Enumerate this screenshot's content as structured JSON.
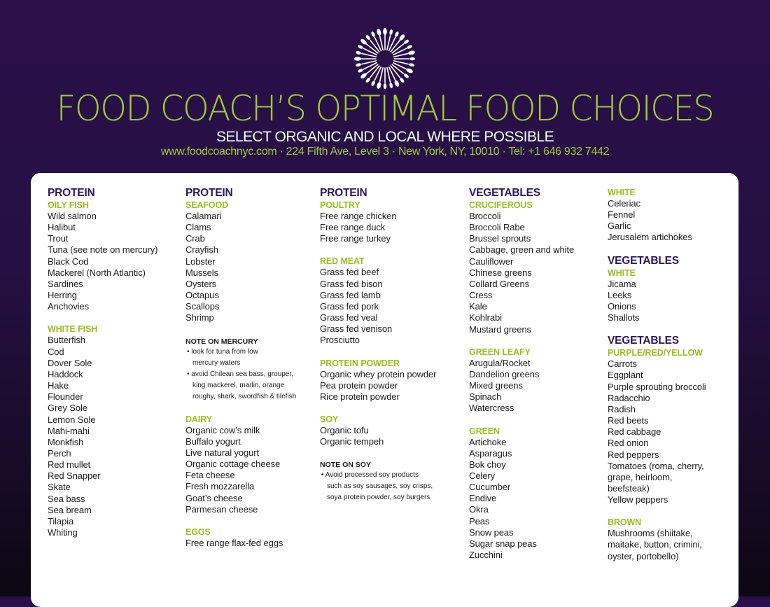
{
  "header": {
    "title": "FOOD COACH’S OPTIMAL FOOD CHOICES",
    "subtitle": "SELECT ORGANIC AND LOCAL WHERE POSSIBLE",
    "contact": "www.foodcoachnyc.com · 224 Fifth Ave, Level 3 · New York, NY, 10010 · Tel: +1 646 932 7442",
    "logo_icon": "utensil-burst-icon"
  },
  "colors": {
    "purple": "#2c1758",
    "green": "#a2c83a",
    "text": "#1d1d1d"
  },
  "columns": [
    {
      "heading": "PROTEIN",
      "sections": [
        {
          "category": "OILY FISH",
          "items": [
            "Wild salmon",
            "Halibut",
            "Trout",
            "Tuna (see note on mercury)",
            "Black Cod",
            "Mackerel (North Atlantic)",
            "Sardines",
            "Herring",
            "Anchovies"
          ]
        },
        {
          "category": "WHITE FISH",
          "items": [
            "Butterfish",
            "Cod",
            "Dover Sole",
            "Haddock",
            "Hake",
            "Flounder",
            "Grey Sole",
            "Lemon Sole",
            "Mahi-mahi",
            "Monkfish",
            "Perch",
            "Red mullet",
            "Red Snapper",
            "Skate",
            "Sea bass",
            "Sea bream",
            "Tilapia",
            "Whiting"
          ]
        }
      ]
    },
    {
      "heading": "PROTEIN",
      "sections": [
        {
          "category": "SEAFOOD",
          "items": [
            "Calamari",
            "Clams",
            "Crab",
            "Crayfish",
            "Lobster",
            "Mussels",
            "Oysters",
            "Octapus",
            "Scallops",
            "Shrimp"
          ]
        }
      ],
      "note": {
        "title": "NOTE ON MERCURY",
        "lines": [
          "• look for tuna from low",
          "mercury waters",
          "• avoid Chilean sea bass, grouper,",
          "king mackerel, marlin, orange",
          "roughy, shark, swordfish & tilefish"
        ]
      },
      "sections_after": [
        {
          "category": "DAIRY",
          "items": [
            "Organic cow’s milk",
            "Buffalo yogurt",
            "Live natural yogurt",
            "Organic cottage cheese",
            "Feta cheese",
            "Fresh mozzarella",
            "Goat’s cheese",
            "Parmesan cheese"
          ]
        },
        {
          "category": "EGGS",
          "items": [
            "Free range flax-fed eggs"
          ]
        }
      ]
    },
    {
      "heading": "PROTEIN",
      "sections": [
        {
          "category": "POULTRY",
          "items": [
            "Free range chicken",
            "Free range duck",
            "Free range turkey"
          ]
        },
        {
          "category": "RED MEAT",
          "items": [
            "Grass fed beef",
            "Grass fed bison",
            "Grass fed lamb",
            "Grass fed pork",
            "Grass fed veal",
            "Grass fed venison",
            "Prosciutto"
          ]
        },
        {
          "category": "PROTEIN POWDER",
          "items": [
            "Organic whey protein powder",
            "Pea protein powder",
            "Rice protein powder"
          ]
        },
        {
          "category": "SOY",
          "items": [
            "Organic tofu",
            "Organic tempeh"
          ]
        }
      ],
      "note": {
        "title": "NOTE ON SOY",
        "lines": [
          "• Avoid processed soy products",
          "such as soy sausages, soy crisps,",
          "soya protein powder, soy burgers"
        ]
      }
    },
    {
      "heading": "VEGETABLES",
      "sections": [
        {
          "category": "CRUCIFEROUS",
          "items": [
            "Broccoli",
            "Broccoli Rabe",
            "Brussel sprouts",
            "Cabbage, green and white",
            "Cauliflower",
            "Chinese greens",
            "Collard Greens",
            "Cress",
            "Kale",
            "Kohlrabi",
            "Mustard greens"
          ]
        },
        {
          "category": "GREEN LEAFY",
          "items": [
            "Arugula/Rocket",
            "Dandelion greens",
            "Mixed greens",
            "Spinach",
            "Watercress"
          ]
        },
        {
          "category": "GREEN",
          "items": [
            "Artichoke",
            "Asparagus",
            "Bok choy",
            "Celery",
            "Cucumber",
            "Endive",
            "Okra",
            "Peas",
            "Snow peas",
            "Sugar snap peas",
            "Zucchini"
          ]
        }
      ]
    },
    {
      "blocks": [
        {
          "heading": "",
          "category": "WHITE",
          "items": [
            "Celeriac",
            "Fennel",
            "Garlic",
            "Jerusalem artichokes"
          ]
        },
        {
          "heading": "VEGETABLES",
          "category": "WHITE",
          "items": [
            "Jicama",
            "Leeks",
            "Onions",
            "Shallots"
          ]
        },
        {
          "heading": "VEGETABLES",
          "category": "PURPLE/RED/YELLOW",
          "items": [
            "Carrots",
            "Eggplant",
            "Purple sprouting broccoli",
            "Radacchio",
            "Radish",
            "Red beets",
            "Red cabbage",
            "Red onion",
            "Red peppers",
            "Tomatoes (roma, cherry,",
            "grape, heirloom,",
            "beefsteak)",
            "Yellow peppers"
          ]
        },
        {
          "heading": "",
          "category": "BROWN",
          "items": [
            "Mushrooms (shiitake,",
            "maitake, button, crimini,",
            "oyster, portobello)"
          ]
        }
      ]
    }
  ]
}
